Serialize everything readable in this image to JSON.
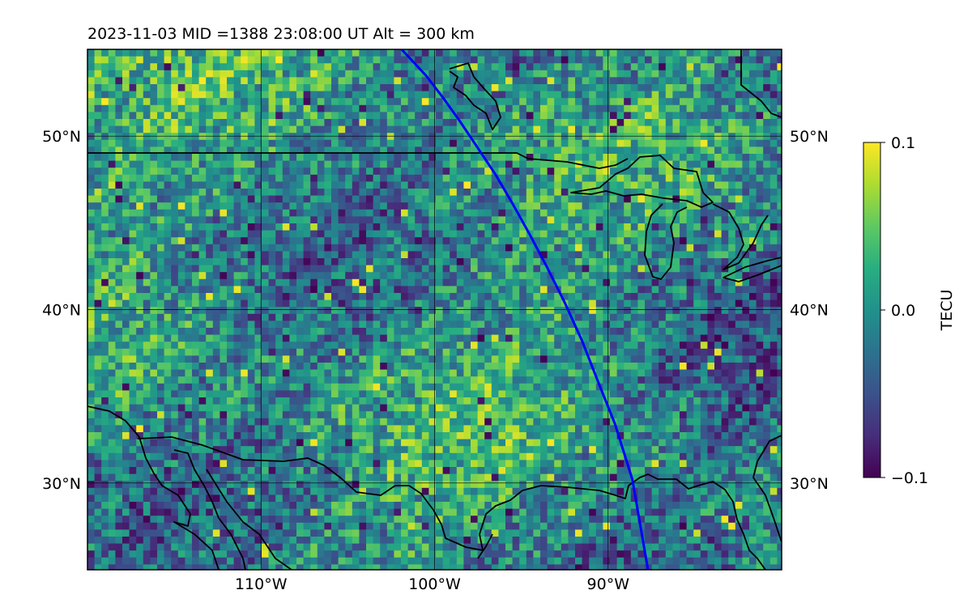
{
  "header": {
    "title": "2023-11-03  MID =1388    23:08:00  UT  Alt = 300 km"
  },
  "colors": {
    "track": "#0000ff",
    "coastline": "#000000",
    "gridline": "#000000",
    "colormap": "viridis"
  },
  "colorbar": {
    "label": "TECU",
    "tick_labels": [
      "0.1",
      "0.0",
      "−0.1"
    ],
    "ticks": [
      0.1,
      0.0,
      -0.1
    ],
    "range": [
      -0.1,
      0.1
    ]
  },
  "chart_data": {
    "type": "heatmap",
    "title": "2023-11-03  MID =1388    23:08:00  UT  Alt = 300 km",
    "xlabel": "",
    "ylabel": "",
    "xlim": [
      -120,
      -80
    ],
    "ylim": [
      25,
      55
    ],
    "x_ticks": [
      -110,
      -100,
      -90
    ],
    "x_tick_labels": [
      "110°W",
      "100°W",
      "90°W"
    ],
    "y_ticks": [
      50,
      40,
      30
    ],
    "y_tick_labels": [
      "50°N",
      "40°N",
      "30°N"
    ],
    "grid": true,
    "value_range": [
      -0.1,
      0.1
    ],
    "units": "TECU",
    "track": {
      "lon": [
        -101.9,
        -100.5,
        -99.5,
        -98.5,
        -97.5,
        -96.5,
        -95.5,
        -94.5,
        -93.5,
        -92.5,
        -91.5,
        -90.6,
        -89.6,
        -88.6,
        -87.7
      ],
      "lat": [
        55,
        53.5,
        52.2,
        50.8,
        49.3,
        47.8,
        46.1,
        44.3,
        42.4,
        40.4,
        38.2,
        35.9,
        33.4,
        30.2,
        25
      ]
    }
  }
}
